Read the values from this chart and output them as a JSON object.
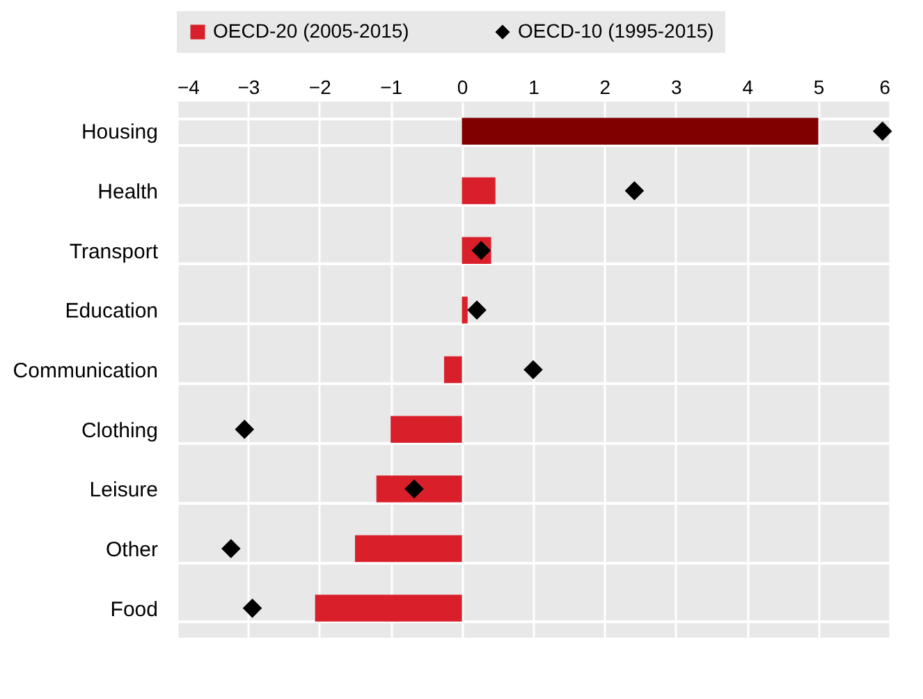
{
  "chart_data": {
    "type": "bar",
    "orientation": "horizontal",
    "categories": [
      "Housing",
      "Health",
      "Transport",
      "Education",
      "Communication",
      "Clothing",
      "Leisure",
      "Other",
      "Food"
    ],
    "series": [
      {
        "name": "OECD-20 (2005-2015)",
        "color": "#d9202a",
        "colors": [
          "#800000",
          "#d9202a",
          "#d9202a",
          "#d9202a",
          "#d9202a",
          "#d9202a",
          "#d9202a",
          "#d9202a",
          "#d9202a"
        ],
        "values": [
          5.0,
          0.47,
          0.41,
          0.08,
          -0.25,
          -1.0,
          -1.2,
          -1.5,
          -2.06
        ]
      },
      {
        "name": "OECD-10 (1995-2015)",
        "type": "scatter",
        "color": "#000000",
        "marker": "diamond",
        "values": [
          5.9,
          2.42,
          0.27,
          0.21,
          1.0,
          -3.05,
          -0.67,
          -3.24,
          -2.94
        ]
      }
    ],
    "xlim": [
      -4,
      6
    ],
    "xticks": [
      -4,
      -3,
      -2,
      -1,
      0,
      1,
      2,
      3,
      4,
      5,
      6
    ],
    "grid": true,
    "legend": "top"
  }
}
